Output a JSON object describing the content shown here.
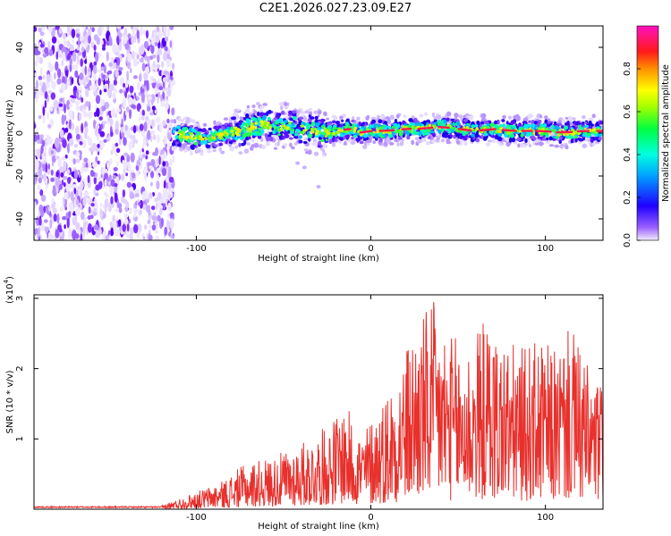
{
  "title": "C2E1.2026.027.23.09.E27",
  "colors": {
    "snr_line": "#e8302c",
    "ridge": "#ff1a4a",
    "axis": "#000000"
  },
  "chart_data": [
    {
      "type": "heatmap",
      "name": "spectrogram",
      "xlabel": "Height of straight line (km)",
      "ylabel": "Frequency (Hz)",
      "xlim": [
        -193,
        133
      ],
      "ylim": [
        -50,
        50
      ],
      "xticks": [
        -100,
        0,
        100
      ],
      "xtick_labels": [
        "-100",
        "0",
        "100"
      ],
      "yticks": [
        -40,
        -20,
        0,
        20,
        40
      ],
      "ytick_labels": [
        "-40",
        "-20",
        "0",
        "20",
        "40"
      ],
      "noise_region_x": [
        -193,
        -113
      ],
      "ridge": {
        "x": [
          -113,
          -105,
          -97,
          -90,
          -82,
          -75,
          -67,
          -60,
          -53,
          -46,
          -40,
          -34,
          -28,
          -20,
          -12,
          -5,
          0,
          10,
          20,
          30,
          40,
          50,
          60,
          70,
          80,
          90,
          100,
          110,
          120,
          133
        ],
        "freq": [
          0,
          -1,
          -3,
          -2,
          0,
          1,
          3,
          4,
          3,
          4,
          2,
          1,
          0,
          1,
          2,
          0,
          1,
          1,
          2,
          2,
          3,
          2,
          1,
          2,
          1,
          1,
          1,
          0,
          1,
          1
        ]
      },
      "colorbar": {
        "label": "Normalized spectral amplitude",
        "range": [
          0,
          1
        ],
        "ticks": [
          0.0,
          0.2,
          0.4,
          0.6,
          0.8
        ],
        "tick_labels": [
          "0.0",
          "0.2",
          "0.4",
          "0.6",
          "0.8"
        ]
      }
    },
    {
      "type": "line",
      "name": "snr",
      "xlabel": "Height of straight line (km)",
      "ylabel": "SNR (10 * v/v)",
      "scale_note": "(x10",
      "scale_exp": "4",
      "scale_close": ")",
      "xlim": [
        -193,
        133
      ],
      "ylim": [
        0,
        3.05
      ],
      "xticks": [
        -100,
        0,
        100
      ],
      "xtick_labels": [
        "-100",
        "0",
        "100"
      ],
      "yticks": [
        1,
        2,
        3
      ],
      "ytick_labels": [
        "1",
        "2",
        "3"
      ],
      "envelope": {
        "x": [
          -193,
          -120,
          -105,
          -95,
          -85,
          -75,
          -65,
          -55,
          -45,
          -35,
          -25,
          -15,
          -5,
          5,
          15,
          25,
          35,
          45,
          55,
          65,
          75,
          85,
          95,
          105,
          115,
          125,
          133
        ],
        "peak": [
          0.03,
          0.05,
          0.2,
          0.3,
          0.4,
          0.6,
          0.7,
          0.75,
          0.9,
          1.0,
          1.2,
          1.5,
          1.1,
          1.5,
          2.0,
          2.6,
          3.0,
          2.5,
          2.4,
          2.7,
          2.5,
          2.3,
          2.4,
          2.3,
          2.6,
          2.0,
          1.8
        ]
      }
    }
  ]
}
